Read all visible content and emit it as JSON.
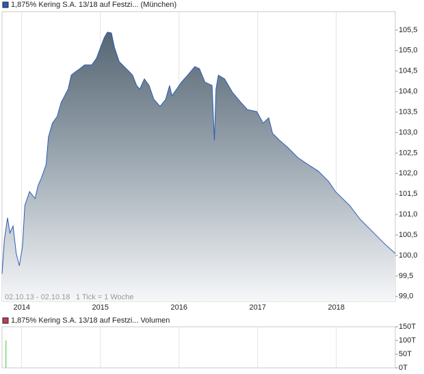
{
  "chart_data": [
    {
      "type": "area",
      "series": [
        {
          "name": "1,875% Kering S.A. 13/18 auf Festzi... (München)",
          "color": "#2a5bb5",
          "x": [
            2013.75,
            2013.78,
            2013.82,
            2013.85,
            2013.89,
            2013.93,
            2013.97,
            2014.01,
            2014.04,
            2014.1,
            2014.17,
            2014.21,
            2014.25,
            2014.31,
            2014.34,
            2014.39,
            2014.45,
            2014.5,
            2014.59,
            2014.63,
            2014.68,
            2014.74,
            2014.8,
            2014.89,
            2014.95,
            2015.0,
            2015.05,
            2015.09,
            2015.14,
            2015.18,
            2015.24,
            2015.33,
            2015.41,
            2015.46,
            2015.5,
            2015.56,
            2015.62,
            2015.68,
            2015.76,
            2015.83,
            2015.88,
            2015.91,
            2015.97,
            2016.03,
            2016.11,
            2016.2,
            2016.26,
            2016.33,
            2016.42,
            2016.45,
            2016.47,
            2016.5,
            2016.58,
            2016.68,
            2016.79,
            2016.87,
            2016.99,
            2017.07,
            2017.14,
            2017.19,
            2017.28,
            2017.38,
            2017.51,
            2017.64,
            2017.77,
            2017.9,
            2017.99,
            2018.08,
            2018.17,
            2018.3,
            2018.43,
            2018.56,
            2018.65,
            2018.75
          ],
          "values": [
            99.55,
            100.39,
            100.92,
            100.55,
            100.72,
            100.05,
            99.75,
            100.22,
            101.22,
            101.56,
            101.39,
            101.72,
            101.89,
            102.22,
            102.89,
            103.23,
            103.39,
            103.73,
            104.06,
            104.4,
            104.48,
            104.56,
            104.65,
            104.65,
            104.81,
            105.07,
            105.32,
            105.45,
            105.43,
            105.07,
            104.73,
            104.56,
            104.4,
            104.15,
            104.06,
            104.31,
            104.15,
            103.81,
            103.64,
            103.81,
            104.15,
            103.9,
            104.06,
            104.23,
            104.4,
            104.61,
            104.56,
            104.23,
            104.15,
            102.81,
            104.06,
            104.4,
            104.31,
            103.98,
            103.73,
            103.56,
            103.51,
            103.23,
            103.36,
            102.98,
            102.81,
            102.64,
            102.39,
            102.22,
            102.06,
            101.81,
            101.56,
            101.39,
            101.22,
            100.89,
            100.64,
            100.39,
            100.22,
            100.05
          ]
        }
      ],
      "xlim": [
        2013.75,
        2018.75
      ],
      "xticks": [
        2014,
        2015,
        2016,
        2017,
        2018
      ],
      "ylim": [
        98.88,
        105.95
      ],
      "yticks": [
        {
          "value": 99.0,
          "label": "99,0"
        },
        {
          "value": 99.5,
          "label": "99,5"
        },
        {
          "value": 100.0,
          "label": "100,0"
        },
        {
          "value": 100.5,
          "label": "100,5"
        },
        {
          "value": 101.0,
          "label": "101,0"
        },
        {
          "value": 101.5,
          "label": "101,5"
        },
        {
          "value": 102.0,
          "label": "102,0"
        },
        {
          "value": 102.5,
          "label": "102,5"
        },
        {
          "value": 103.0,
          "label": "103,0"
        },
        {
          "value": 103.5,
          "label": "103,5"
        },
        {
          "value": 104.0,
          "label": "104,0"
        },
        {
          "value": 104.5,
          "label": "104,5"
        },
        {
          "value": 105.0,
          "label": "105,0"
        },
        {
          "value": 105.5,
          "label": "105,5"
        }
      ],
      "annotations": [
        "02.10.13 - 02.10.18",
        "1 Tick = 1 Woche"
      ],
      "grid": true
    },
    {
      "type": "bar",
      "series": [
        {
          "name": "1,875% Kering S.A. 13/18 auf Festzi... Volumen",
          "color": "#3cc43c",
          "legend_color": "#c0404a",
          "x": [
            2013.8
          ],
          "values": [
            100000
          ]
        }
      ],
      "xlim": [
        2013.75,
        2018.75
      ],
      "ylim": [
        0,
        150000
      ],
      "yticks": [
        {
          "value": 0,
          "label": "0T"
        },
        {
          "value": 50000,
          "label": "50T"
        },
        {
          "value": 100000,
          "label": "100T"
        },
        {
          "value": 150000,
          "label": "150T"
        }
      ],
      "grid": true
    }
  ]
}
